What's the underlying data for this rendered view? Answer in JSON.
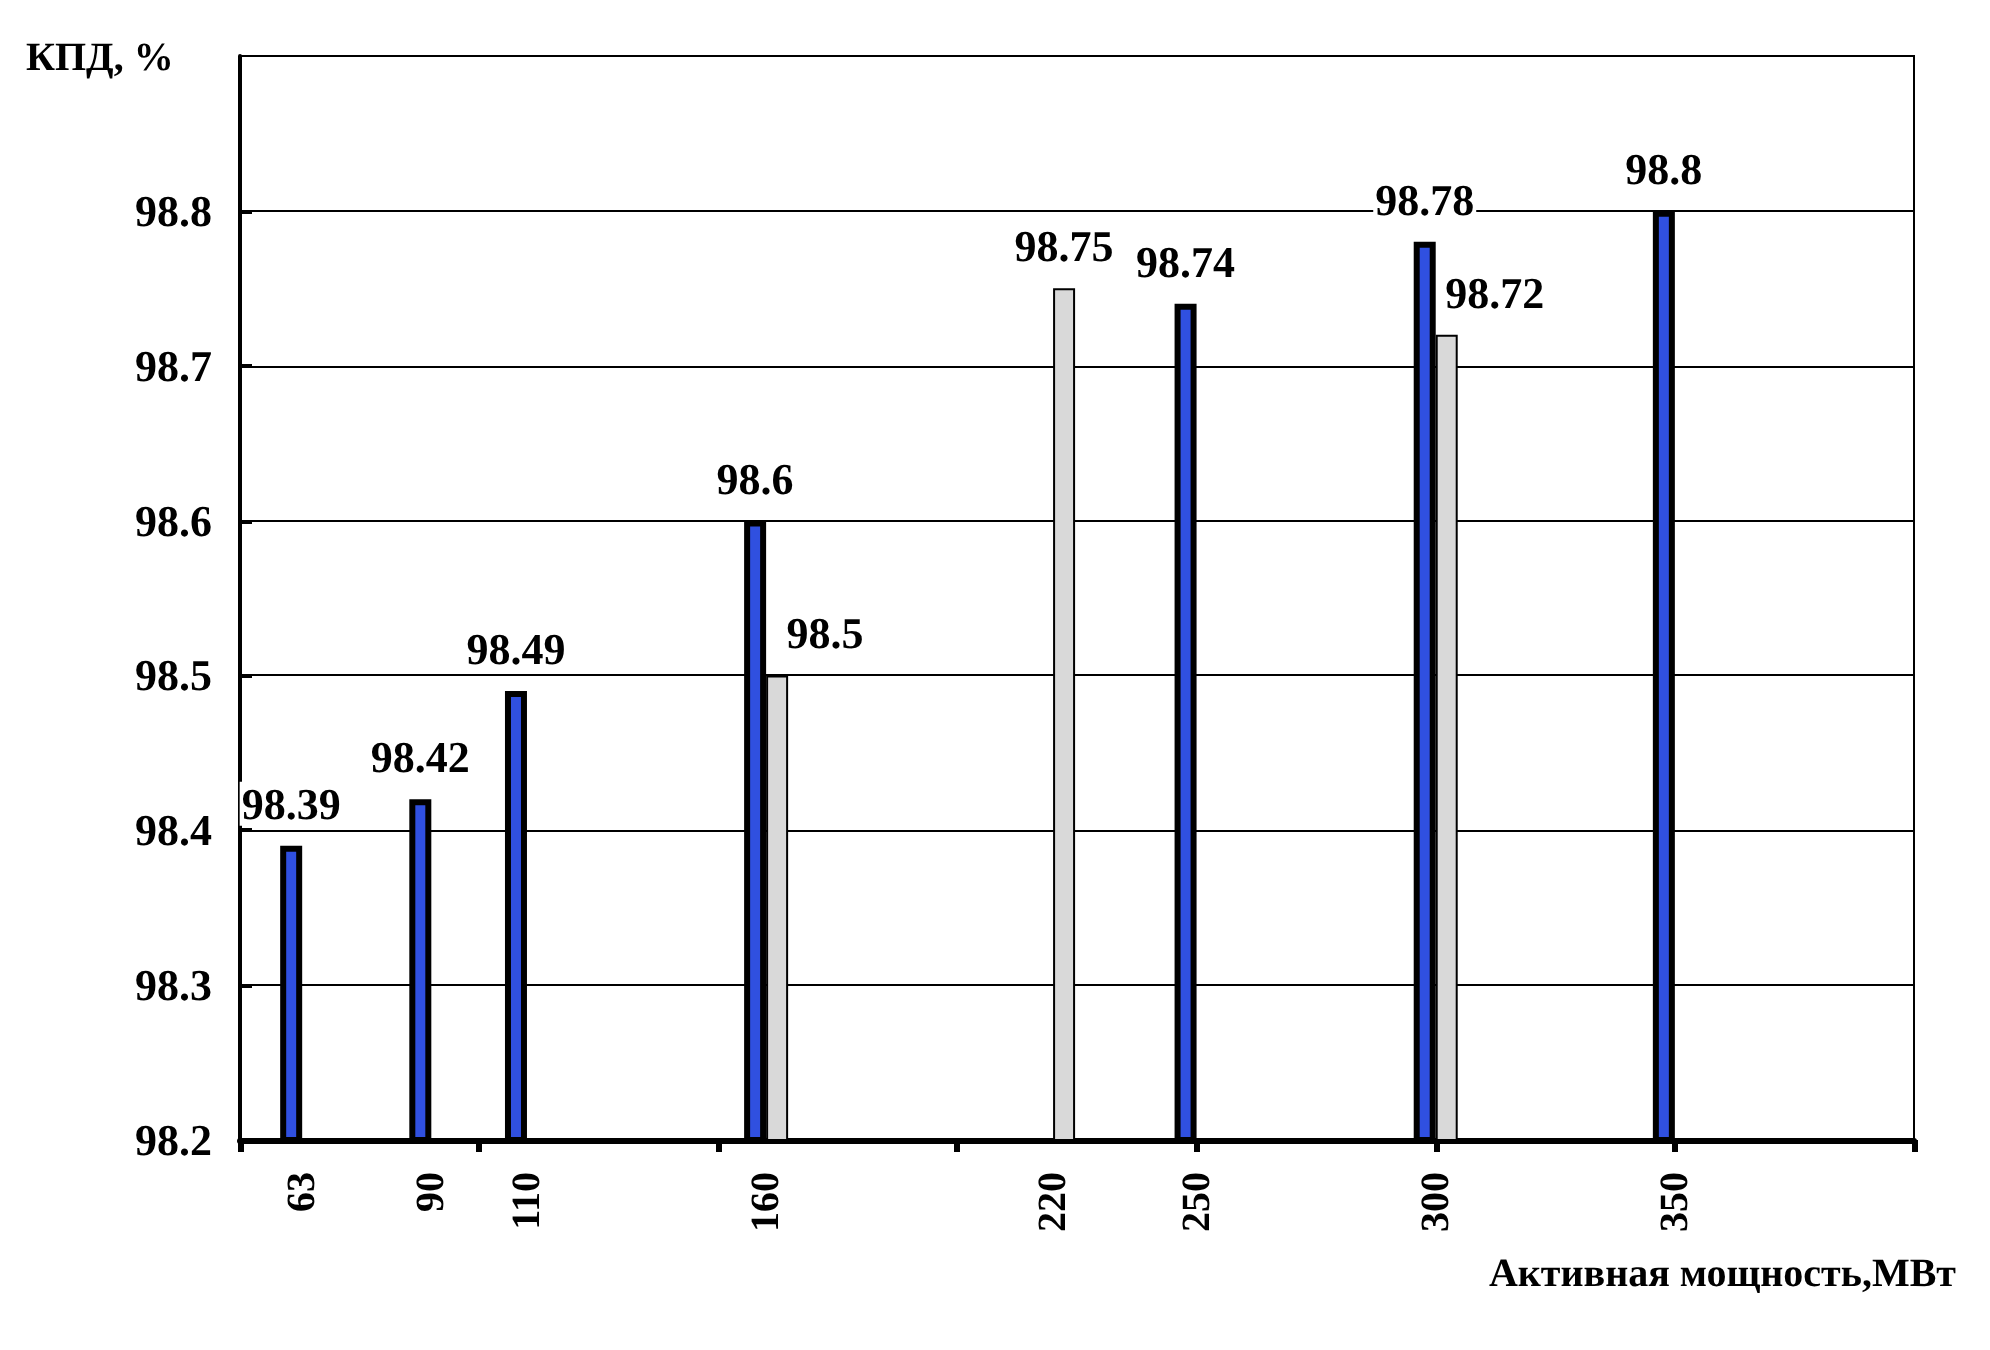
{
  "chart_data": {
    "type": "bar",
    "ylabel": "КПД, %",
    "xlabel": "Активная мощность,МВт",
    "series": [
      {
        "color": "#3050e0",
        "x": [
          63,
          90,
          110,
          160,
          250,
          300,
          350
        ],
        "values": [
          98.39,
          98.42,
          98.49,
          98.6,
          98.74,
          98.78,
          98.8
        ]
      },
      {
        "color": "#d9d9d9",
        "x": [
          160,
          220,
          300
        ],
        "values": [
          98.5,
          98.75,
          98.72
        ]
      }
    ],
    "xlim": [
      50,
      400
    ],
    "xticks": [
      {
        "value": 50,
        "label": null
      },
      63,
      90,
      {
        "value": 100,
        "label": null
      },
      110,
      {
        "value": 150,
        "label": null
      },
      160,
      {
        "value": 200,
        "label": null
      },
      220,
      250,
      {
        "value": 250,
        "label": null
      },
      300,
      {
        "value": 300,
        "label": null
      },
      350,
      {
        "value": 350,
        "label": null
      },
      {
        "value": 400,
        "label": null
      }
    ],
    "ylim": [
      98.2,
      98.9
    ],
    "yticks": [
      98.2,
      98.3,
      98.4,
      98.5,
      98.6,
      98.7,
      98.8
    ],
    "grid": "y",
    "data_labels": true
  }
}
